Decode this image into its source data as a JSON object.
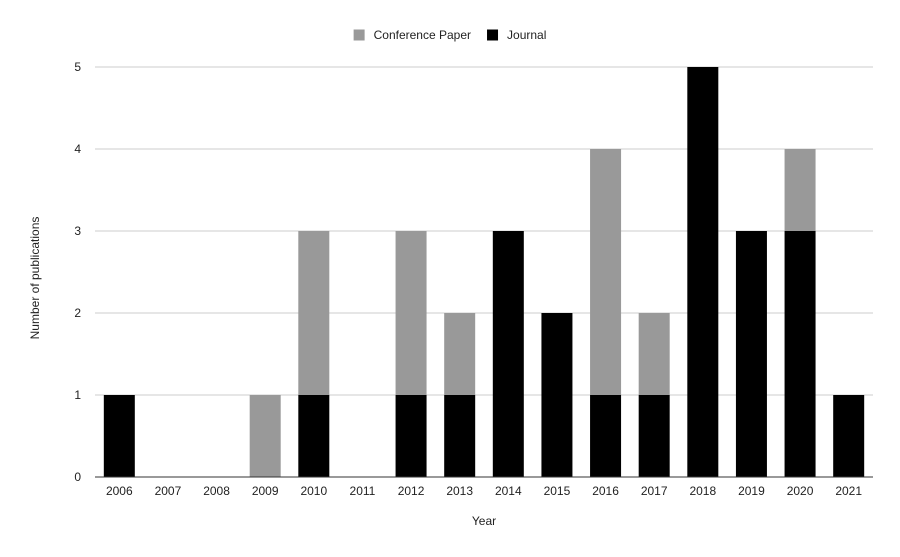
{
  "chart_data": {
    "type": "bar",
    "stacked": true,
    "title": "",
    "xlabel": "Year",
    "ylabel": "Number of publications",
    "categories": [
      "2006",
      "2007",
      "2008",
      "2009",
      "2010",
      "2011",
      "2012",
      "2013",
      "2014",
      "2015",
      "2016",
      "2017",
      "2018",
      "2019",
      "2020",
      "2021"
    ],
    "series": [
      {
        "name": "Journal",
        "color": "#000000",
        "values": [
          1,
          0,
          0,
          0,
          1,
          0,
          1,
          1,
          3,
          2,
          1,
          1,
          5,
          3,
          3,
          1
        ]
      },
      {
        "name": "Conference Paper",
        "color": "#999999",
        "values": [
          0,
          0,
          0,
          1,
          2,
          0,
          2,
          1,
          0,
          0,
          3,
          1,
          0,
          0,
          1,
          0
        ]
      }
    ],
    "legend_order": [
      "Conference Paper",
      "Journal"
    ],
    "ylim": [
      0,
      5
    ],
    "yticks": [
      "0",
      "1",
      "2",
      "3",
      "4",
      "5"
    ],
    "grid": true,
    "legend_position": "top"
  }
}
